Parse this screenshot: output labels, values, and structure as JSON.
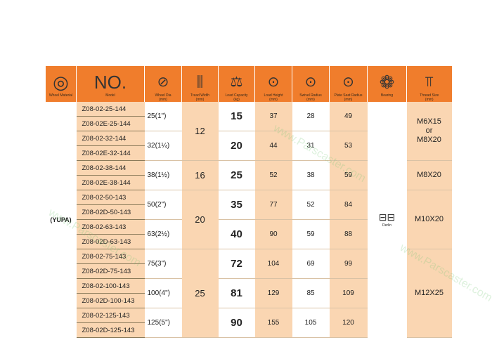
{
  "headers": {
    "wheel_material": "Wheel Material",
    "model_icon_text": "NO.",
    "model": "Model",
    "wheel_dia": "Wheel Dia",
    "wheel_dia_unit": "(mm)",
    "tread_width": "Tread Width",
    "tread_width_unit": "(mm)",
    "load_capacity": "Load Capacity",
    "load_capacity_unit": "(kg)",
    "load_height": "Load Height",
    "load_height_unit": "(mm)",
    "swivel_radius": "Swivel Radius",
    "swivel_radius_unit": "(mm)",
    "plate_seat_radius": "Plate Seat Radius",
    "plate_seat_radius_unit": "(mm)",
    "bearing": "Bearing",
    "thread_size": "Thread Size",
    "thread_size_unit": "(mm)"
  },
  "wheel_material": "(YUPA)",
  "bearing": "Derlin",
  "models": [
    "Z08-02-25-144",
    "Z08-02E-25-144",
    "Z08-02-32-144",
    "Z08-02E-32-144",
    "Z08-02-38-144",
    "Z08-02E-38-144",
    "Z08-02-50-143",
    "Z08-02D-50-143",
    "Z08-02-63-143",
    "Z08-02D-63-143",
    "Z08-02-75-143",
    "Z08-02D-75-143",
    "Z08-02-100-143",
    "Z08-02D-100-143",
    "Z08-02-125-143",
    "Z08-02D-125-143"
  ],
  "pairs": [
    {
      "dia": "25(1\")",
      "load": "15",
      "height": "37",
      "swivel": "28",
      "plate": "49"
    },
    {
      "dia": "32(1¼)",
      "load": "20",
      "height": "44",
      "swivel": "31",
      "plate": "53"
    },
    {
      "dia": "38(1½)",
      "load": "25",
      "height": "52",
      "swivel": "38",
      "plate": "59"
    },
    {
      "dia": "50(2\")",
      "load": "35",
      "height": "77",
      "swivel": "52",
      "plate": "84"
    },
    {
      "dia": "63(2½)",
      "load": "40",
      "height": "90",
      "swivel": "59",
      "plate": "88"
    },
    {
      "dia": "75(3\")",
      "load": "72",
      "height": "104",
      "swivel": "69",
      "plate": "99"
    },
    {
      "dia": "100(4\")",
      "load": "81",
      "height": "129",
      "swivel": "85",
      "plate": "109"
    },
    {
      "dia": "125(5\")",
      "load": "90",
      "height": "155",
      "swivel": "105",
      "plate": "120"
    }
  ],
  "tread_widths": [
    "12",
    "16",
    "20",
    "25"
  ],
  "thread_sizes": [
    {
      "line1": "M6X15",
      "line2": "or",
      "line3": "M8X20"
    },
    {
      "line1": "M8X20"
    },
    {
      "line1": "M10X20"
    },
    {
      "line1": "M12X25"
    }
  ],
  "watermark": "www.Parscaster.com",
  "colors": {
    "header": "#f07d2c",
    "peach": "#fad6b2"
  }
}
